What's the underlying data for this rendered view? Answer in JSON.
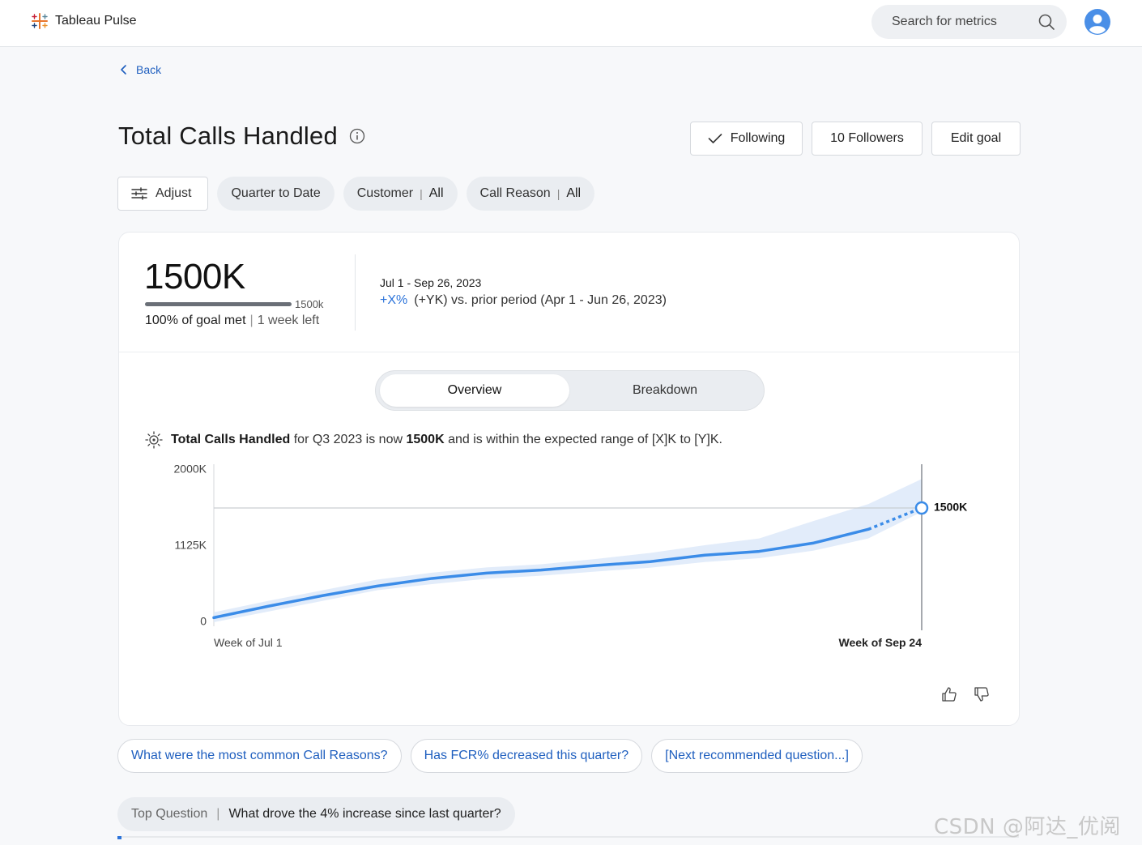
{
  "header": {
    "app_title": "Tableau Pulse",
    "search_placeholder": "Search for metrics"
  },
  "nav": {
    "back_label": "Back"
  },
  "page": {
    "title": "Total Calls Handled",
    "actions": {
      "following": "Following",
      "followers": "10 Followers",
      "edit_goal": "Edit goal"
    }
  },
  "filters": {
    "adjust": "Adjust",
    "time": "Quarter to Date",
    "customer": {
      "label": "Customer",
      "value": "All"
    },
    "call_reason": {
      "label": "Call Reason",
      "value": "All"
    }
  },
  "kpi": {
    "value": "1500K",
    "goal_value": "1500k",
    "goal_met": "100% of goal met",
    "time_left": "1 week left",
    "goal_fraction": 1.0,
    "period": "Jul 1 - Sep 26, 2023",
    "change_pct": "+X%",
    "change_text": "(+YK) vs. prior period (Apr 1 - Jun 26, 2023)"
  },
  "tabs": {
    "overview": "Overview",
    "breakdown": "Breakdown"
  },
  "insight": {
    "metric": "Total Calls Handled",
    "pre": "for Q3 2023 is now",
    "value": "1500K",
    "post": "and is within the expected range of [X]K to [Y]K."
  },
  "chart_data": {
    "type": "line",
    "y_ticks": [
      "2000K",
      "1125K",
      "0"
    ],
    "ylim": [
      0,
      2000
    ],
    "x_start_label": "Week of Jul 1",
    "x_end_label": "Week of Sep 24",
    "goal_line": 1500,
    "end_label": "1500K",
    "series_actual": [
      60,
      210,
      350,
      475,
      575,
      645,
      685,
      745,
      795,
      880,
      930,
      1040,
      1220
    ],
    "series_projected_end": 1500,
    "band_upper": [
      130,
      280,
      420,
      560,
      650,
      720,
      760,
      830,
      910,
      1010,
      1100,
      1330,
      1550
    ],
    "band_lower": [
      0,
      140,
      280,
      420,
      500,
      570,
      610,
      665,
      715,
      790,
      840,
      940,
      1100
    ],
    "band_end_upper": 1880,
    "band_end_lower": 1450
  },
  "questions": [
    "What were the most common Call Reasons?",
    "Has FCR% decreased this quarter?",
    "[Next recommended question...]"
  ],
  "top_question": {
    "label": "Top Question",
    "text": "What drove the 4% increase since last quarter?"
  },
  "watermark": "CSDN @阿达_优阅达"
}
